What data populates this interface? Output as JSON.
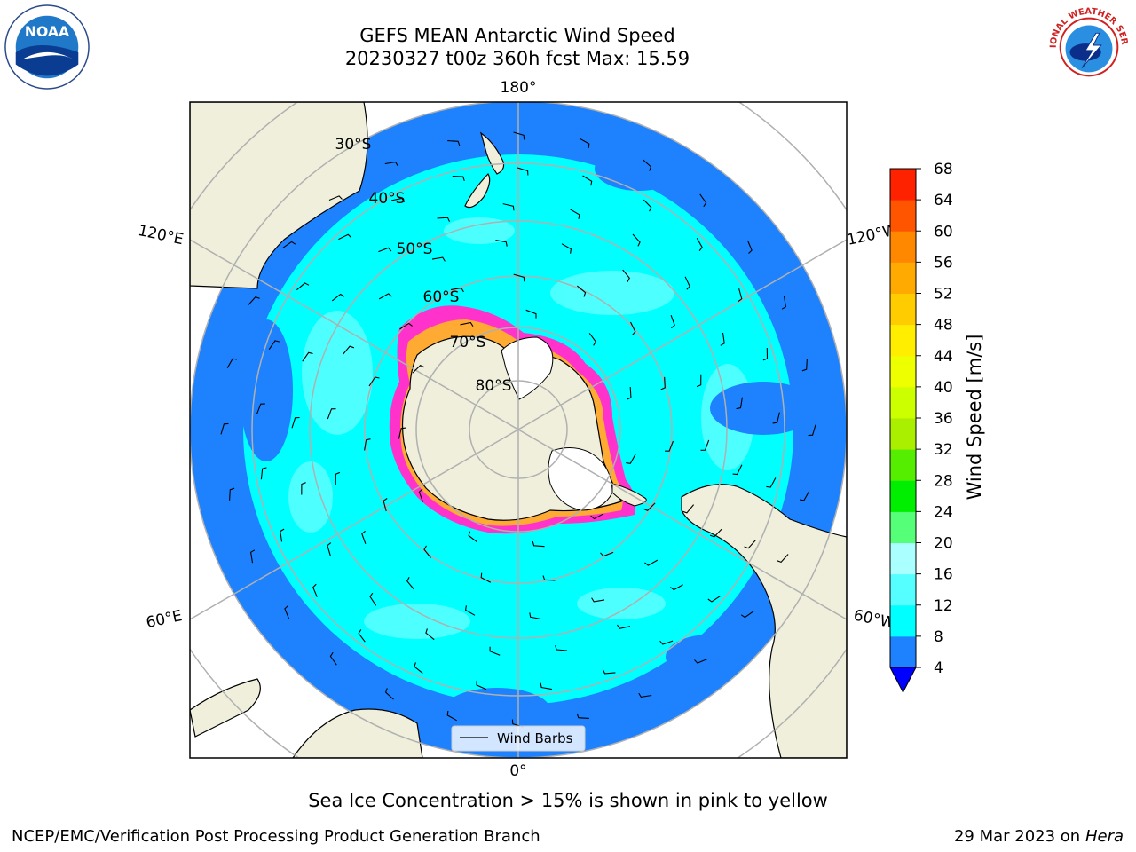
{
  "header": {
    "title_line1": "GEFS MEAN Antarctic Wind Speed",
    "title_line2": "20230327 t00z 360h fcst   Max: 15.59"
  },
  "logos": {
    "left": {
      "icon": "noaa-logo-icon",
      "text": "NOAA"
    },
    "right": {
      "icon": "nws-logo-icon",
      "text": "NATIONAL WEATHER SERVICE"
    }
  },
  "map": {
    "projection": "south-polar-stereographic",
    "longitude_labels": {
      "top": "180°",
      "bottom": "0°",
      "left_upper": "120°E",
      "right_upper": "120°W",
      "left_lower": "60°E",
      "right_lower": "60°W"
    },
    "latitude_labels": [
      "30°S",
      "40°S",
      "50°S",
      "60°S",
      "70°S",
      "80°S"
    ],
    "colors": {
      "land": "#efefdc",
      "ocean_4_8": "#1e82ff",
      "ocean_8_12": "#00ffff",
      "ocean_12_16": "#55ffff",
      "sea_ice_edge": "#ff33cc",
      "sea_ice_inner": "#ffaa33",
      "ice_shelf": "#ffffff",
      "gridline": "#b0b0b0"
    },
    "legend": {
      "entry": "Wind Barbs",
      "icon": "wind-barb-icon"
    }
  },
  "colorbar": {
    "label": "Wind Speed [m/s]",
    "ticks": [
      "4",
      "8",
      "12",
      "16",
      "20",
      "24",
      "28",
      "32",
      "36",
      "40",
      "44",
      "48",
      "52",
      "56",
      "60",
      "64",
      "68"
    ],
    "colors": [
      "#1e82ff",
      "#00ffff",
      "#55ffff",
      "#aaffff",
      "#55ff77",
      "#00ee00",
      "#55ee00",
      "#aaee00",
      "#ccff00",
      "#eeff00",
      "#ffee00",
      "#ffcc00",
      "#ffaa00",
      "#ff8800",
      "#ff5500",
      "#ff2200"
    ],
    "extend_low_color": "#0000ff",
    "extend_high_color": "#ff0000"
  },
  "caption": "Sea Ice Concentration > 15% is shown in pink to yellow",
  "footer": {
    "left": "NCEP/EMC/Verification Post Processing Product Generation Branch",
    "right_date": "29 Mar 2023 on",
    "right_host": "Hera"
  }
}
